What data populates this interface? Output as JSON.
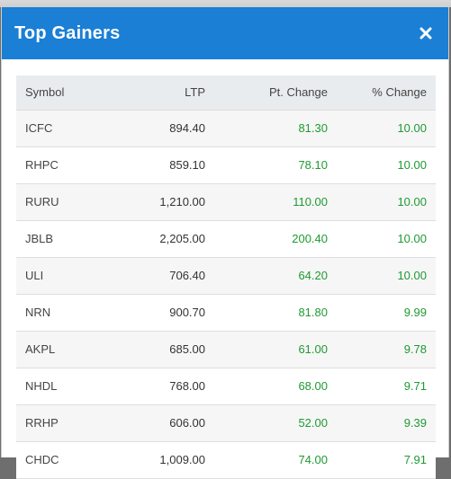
{
  "modal": {
    "title": "Top Gainers",
    "close_icon": "close-icon"
  },
  "table": {
    "headers": {
      "symbol": "Symbol",
      "ltp": "LTP",
      "pt_change": "Pt. Change",
      "pct_change": "% Change"
    },
    "rows": [
      {
        "symbol": "ICFC",
        "ltp": "894.40",
        "pt_change": "81.30",
        "pct_change": "10.00"
      },
      {
        "symbol": "RHPC",
        "ltp": "859.10",
        "pt_change": "78.10",
        "pct_change": "10.00"
      },
      {
        "symbol": "RURU",
        "ltp": "1,210.00",
        "pt_change": "110.00",
        "pct_change": "10.00"
      },
      {
        "symbol": "JBLB",
        "ltp": "2,205.00",
        "pt_change": "200.40",
        "pct_change": "10.00"
      },
      {
        "symbol": "ULI",
        "ltp": "706.40",
        "pt_change": "64.20",
        "pct_change": "10.00"
      },
      {
        "symbol": "NRN",
        "ltp": "900.70",
        "pt_change": "81.80",
        "pct_change": "9.99"
      },
      {
        "symbol": "AKPL",
        "ltp": "685.00",
        "pt_change": "61.00",
        "pct_change": "9.78"
      },
      {
        "symbol": "NHDL",
        "ltp": "768.00",
        "pt_change": "68.00",
        "pct_change": "9.71"
      },
      {
        "symbol": "RRHP",
        "ltp": "606.00",
        "pt_change": "52.00",
        "pct_change": "9.39"
      },
      {
        "symbol": "CHDC",
        "ltp": "1,009.00",
        "pt_change": "74.00",
        "pct_change": "7.91"
      }
    ]
  },
  "colors": {
    "header_bg": "#1a7fd5",
    "gain": "#1e9a32"
  }
}
